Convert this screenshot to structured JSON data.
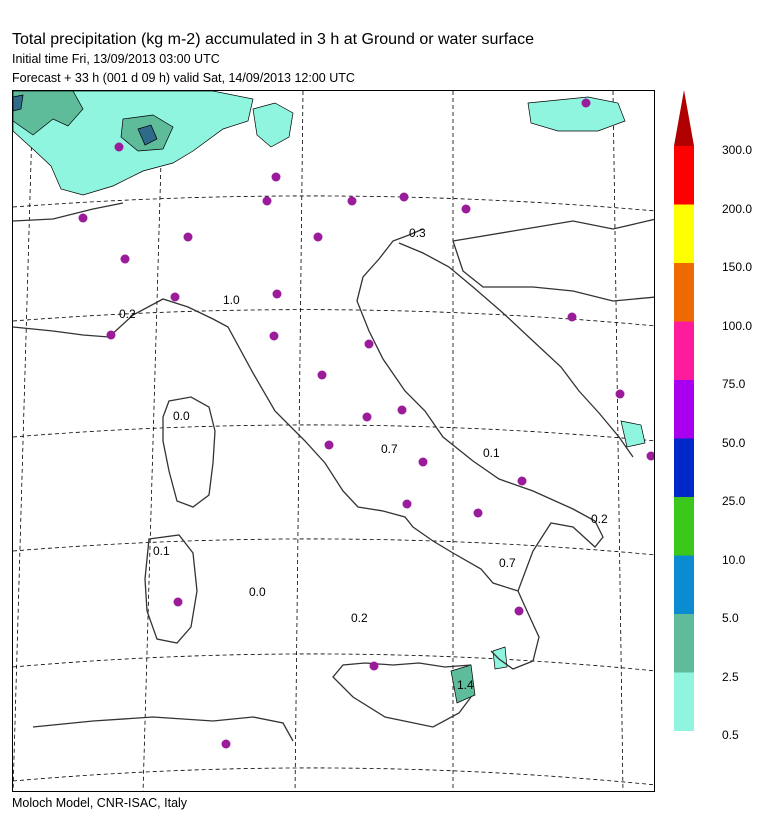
{
  "header": {
    "title": "Total precipitation (kg m-2) accumulated in   3 h at Ground or water surface",
    "initial": "Initial time  Fri, 13/09/2013  03:00 UTC",
    "forecast": "Forecast  +  33 h  (001 d 09 h)  valid Sat, 14/09/2013 12:00 UTC"
  },
  "footer": "Moloch Model, CNR-ISAC, Italy",
  "colorbar": {
    "labels": [
      "300.0",
      "200.0",
      "150.0",
      "100.0",
      "75.0",
      "50.0",
      "25.0",
      "10.0",
      "5.0",
      "2.5",
      "0.5"
    ],
    "colors": [
      "#ff0000",
      "#ffff00",
      "#ee6a00",
      "#ff1c9c",
      "#a800ee",
      "#0028c8",
      "#3cc81a",
      "#0c8cd0",
      "#5ebc9a",
      "#8ff5de"
    ],
    "arrow_color": "#b00000"
  },
  "map": {
    "values": [
      "0.3",
      "1.0",
      "0.2",
      "0.0",
      "0.7",
      "0.1",
      "0.2",
      "0.1",
      "0.0",
      "0.2",
      "0.7",
      "1.4"
    ],
    "station_color": "#9b1c9b",
    "precip_colors": [
      "#8ff5de",
      "#5ebc9a",
      "#2e6a8a"
    ]
  }
}
